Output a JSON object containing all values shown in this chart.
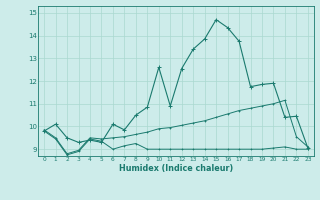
{
  "xlabel": "Humidex (Indice chaleur)",
  "bg_color": "#cdecea",
  "grid_color": "#aad8d0",
  "line_color": "#1a7a6e",
  "xlim": [
    -0.5,
    23.5
  ],
  "ylim": [
    8.7,
    15.3
  ],
  "xtick_labels": [
    "0",
    "1",
    "2",
    "3",
    "4",
    "5",
    "6",
    "7",
    "8",
    "9",
    "10",
    "11",
    "12",
    "13",
    "14",
    "15",
    "16",
    "17",
    "18",
    "19",
    "20",
    "21",
    "22",
    "23"
  ],
  "xtick_vals": [
    0,
    1,
    2,
    3,
    4,
    5,
    6,
    7,
    8,
    9,
    10,
    11,
    12,
    13,
    14,
    15,
    16,
    17,
    18,
    19,
    20,
    21,
    22,
    23
  ],
  "ytick_vals": [
    9,
    10,
    11,
    12,
    13,
    14,
    15
  ],
  "line1_x": [
    0,
    1,
    2,
    3,
    4,
    5,
    6,
    7,
    8,
    9,
    10,
    11,
    12,
    13,
    14,
    15,
    16,
    17,
    18,
    19,
    20,
    21,
    22,
    23
  ],
  "line1_y": [
    9.8,
    10.1,
    9.5,
    9.3,
    9.4,
    9.3,
    10.1,
    9.85,
    10.5,
    10.85,
    12.6,
    10.9,
    12.55,
    13.4,
    13.85,
    14.7,
    14.35,
    13.75,
    11.75,
    11.85,
    11.9,
    10.4,
    10.45,
    9.05
  ],
  "line2_x": [
    0,
    1,
    2,
    3,
    4,
    5,
    6,
    7,
    8,
    9,
    10,
    11,
    12,
    13,
    14,
    15,
    16,
    17,
    18,
    19,
    20,
    21,
    22,
    23
  ],
  "line2_y": [
    9.85,
    9.5,
    8.8,
    8.95,
    9.5,
    9.45,
    9.5,
    9.55,
    9.65,
    9.75,
    9.9,
    9.95,
    10.05,
    10.15,
    10.25,
    10.4,
    10.55,
    10.7,
    10.8,
    10.9,
    11.0,
    11.15,
    9.55,
    9.1
  ],
  "line3_x": [
    0,
    1,
    2,
    3,
    4,
    5,
    6,
    7,
    8,
    9,
    10,
    11,
    12,
    13,
    14,
    15,
    16,
    17,
    18,
    19,
    20,
    21,
    22,
    23
  ],
  "line3_y": [
    9.8,
    9.45,
    8.75,
    8.9,
    9.45,
    9.35,
    9.0,
    9.15,
    9.25,
    9.0,
    9.0,
    9.0,
    9.0,
    9.0,
    9.0,
    9.0,
    9.0,
    9.0,
    9.0,
    9.0,
    9.05,
    9.1,
    9.0,
    9.0
  ]
}
